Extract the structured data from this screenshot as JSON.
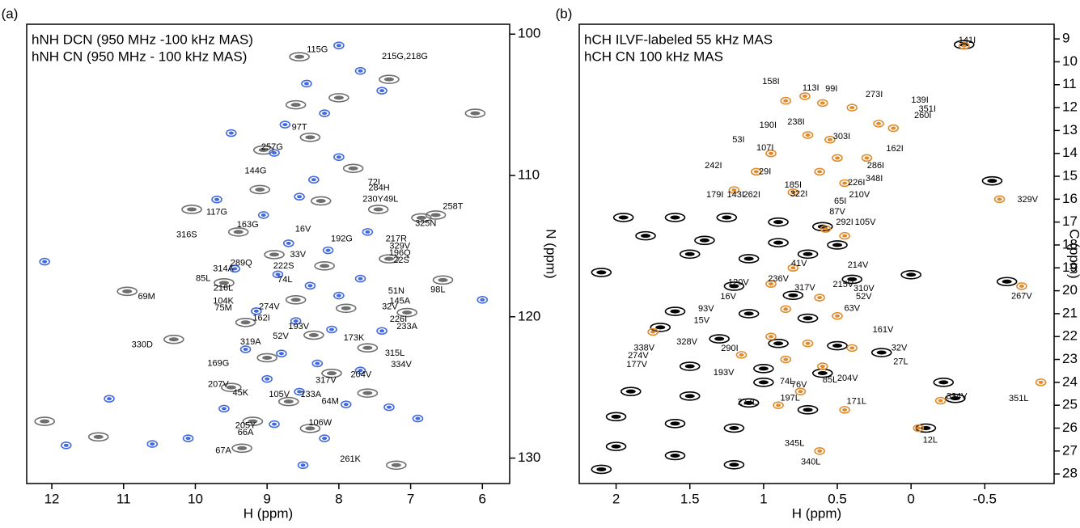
{
  "chart_data": [
    {
      "type": "scatter",
      "panel_label": "(a)",
      "xlabel": "H (ppm)",
      "ylabel": "N (ppm)",
      "xlim": [
        12.35,
        5.62
      ],
      "ylim": [
        99.3,
        131.8
      ],
      "xticks": [
        12,
        11,
        10,
        9,
        8,
        7,
        6
      ],
      "yticks": [
        100,
        110,
        120,
        130
      ],
      "legend": "upper left",
      "series": [
        {
          "name": "hNH DCN (950 MHz -100 kHz MAS)",
          "color": "#4169e1",
          "x": [
            8.0,
            7.7,
            7.4,
            8.45,
            8.2,
            8.75,
            9.5,
            8.9,
            8.0,
            8.35,
            8.55,
            9.7,
            9.05,
            8.7,
            8.15,
            7.6,
            9.45,
            8.85,
            8.4,
            8.0,
            7.7,
            9.15,
            8.6,
            8.1,
            7.4,
            9.3,
            8.8,
            8.3,
            7.7,
            9.0,
            8.55,
            7.9,
            9.6,
            8.9,
            8.2,
            10.6,
            11.8,
            12.1,
            11.2,
            6.0,
            6.9,
            7.3,
            10.1,
            8.5
          ],
          "y": [
            100.8,
            102.6,
            104.0,
            103.5,
            105.6,
            106.4,
            107.0,
            108.4,
            108.7,
            110.3,
            111.5,
            111.7,
            112.8,
            114.8,
            115.3,
            114.0,
            116.6,
            117.0,
            117.8,
            118.5,
            117.3,
            119.6,
            120.3,
            120.9,
            121.0,
            122.3,
            122.6,
            123.3,
            123.8,
            124.4,
            125.3,
            126.2,
            126.5,
            127.6,
            128.6,
            129.0,
            129.1,
            116.1,
            125.8,
            118.8,
            127.2,
            126.4,
            128.6,
            130.5
          ]
        },
        {
          "name": "hNH CN (950 MHz - 100 kHz MAS)",
          "color": "#6e6e6e",
          "x": [
            8.55,
            7.3,
            8.0,
            8.6,
            8.4,
            9.05,
            7.8,
            8.25,
            9.1,
            7.45,
            6.65,
            10.05,
            9.4,
            8.9,
            8.2,
            7.3,
            9.6,
            10.95,
            8.6,
            7.9,
            9.3,
            8.35,
            7.6,
            10.3,
            9.0,
            8.1,
            9.5,
            8.7,
            7.6,
            9.2,
            8.4,
            9.35,
            7.2,
            11.35,
            6.1,
            6.85,
            12.1,
            7.05,
            6.55
          ],
          "y": [
            101.6,
            103.2,
            104.5,
            105.0,
            107.3,
            108.2,
            109.5,
            111.8,
            111.0,
            112.4,
            112.8,
            112.4,
            114.0,
            115.6,
            116.4,
            115.9,
            117.6,
            118.2,
            118.8,
            119.4,
            120.4,
            121.3,
            122.2,
            121.6,
            122.9,
            124.0,
            125.0,
            126.0,
            125.4,
            127.4,
            127.9,
            129.3,
            130.5,
            128.5,
            105.6,
            113.0,
            127.4,
            119.7,
            117.4
          ]
        }
      ],
      "annotations": [
        {
          "text": "115G",
          "x": 8.3,
          "y": 101.1
        },
        {
          "text": "215G,218G",
          "x": 7.08,
          "y": 101.6
        },
        {
          "text": "97T",
          "x": 8.55,
          "y": 106.6
        },
        {
          "text": "257G",
          "x": 8.93,
          "y": 108.0
        },
        {
          "text": "144G",
          "x": 9.16,
          "y": 109.7
        },
        {
          "text": "72I",
          "x": 7.51,
          "y": 110.5
        },
        {
          "text": "284H",
          "x": 7.44,
          "y": 110.9
        },
        {
          "text": "230Y49L",
          "x": 7.42,
          "y": 111.7
        },
        {
          "text": "258T",
          "x": 6.41,
          "y": 112.2
        },
        {
          "text": "117G",
          "x": 9.7,
          "y": 112.6
        },
        {
          "text": "163G",
          "x": 9.27,
          "y": 113.5
        },
        {
          "text": "325N",
          "x": 6.79,
          "y": 113.4
        },
        {
          "text": "16V",
          "x": 8.5,
          "y": 113.8
        },
        {
          "text": "316S",
          "x": 10.12,
          "y": 114.2
        },
        {
          "text": "192G",
          "x": 7.96,
          "y": 114.5
        },
        {
          "text": "217R",
          "x": 7.2,
          "y": 114.5
        },
        {
          "text": "329V",
          "x": 7.15,
          "y": 115.0
        },
        {
          "text": "289Q",
          "x": 9.36,
          "y": 116.2
        },
        {
          "text": "196Q",
          "x": 7.15,
          "y": 115.5
        },
        {
          "text": "33V",
          "x": 8.57,
          "y": 115.6
        },
        {
          "text": "314A",
          "x": 9.61,
          "y": 116.6
        },
        {
          "text": "22S",
          "x": 7.13,
          "y": 116.0
        },
        {
          "text": "222S",
          "x": 8.77,
          "y": 116.4
        },
        {
          "text": "85L",
          "x": 9.89,
          "y": 117.3
        },
        {
          "text": "74L",
          "x": 8.75,
          "y": 117.4
        },
        {
          "text": "216L",
          "x": 9.61,
          "y": 118.0
        },
        {
          "text": "51N",
          "x": 7.2,
          "y": 118.2
        },
        {
          "text": "98L",
          "x": 6.62,
          "y": 118.1
        },
        {
          "text": "69M",
          "x": 10.68,
          "y": 118.6
        },
        {
          "text": "104K",
          "x": 9.61,
          "y": 118.9
        },
        {
          "text": "145A",
          "x": 7.15,
          "y": 118.9
        },
        {
          "text": "75M",
          "x": 9.61,
          "y": 119.4
        },
        {
          "text": "32V",
          "x": 7.29,
          "y": 119.3
        },
        {
          "text": "274V",
          "x": 8.97,
          "y": 119.3
        },
        {
          "text": "162I",
          "x": 9.08,
          "y": 120.1
        },
        {
          "text": "226I",
          "x": 7.17,
          "y": 120.2
        },
        {
          "text": "193V",
          "x": 8.56,
          "y": 120.7
        },
        {
          "text": "233A",
          "x": 7.05,
          "y": 120.7
        },
        {
          "text": "52V",
          "x": 8.81,
          "y": 121.4
        },
        {
          "text": "173K",
          "x": 7.79,
          "y": 121.5
        },
        {
          "text": "319A",
          "x": 9.23,
          "y": 121.8
        },
        {
          "text": "315L",
          "x": 7.22,
          "y": 122.6
        },
        {
          "text": "330D",
          "x": 10.74,
          "y": 122.0
        },
        {
          "text": "334V",
          "x": 7.13,
          "y": 123.4
        },
        {
          "text": "169G",
          "x": 9.68,
          "y": 123.3
        },
        {
          "text": "204V",
          "x": 7.69,
          "y": 124.1
        },
        {
          "text": "317V",
          "x": 8.18,
          "y": 124.5
        },
        {
          "text": "207V",
          "x": 9.68,
          "y": 124.8
        },
        {
          "text": "45K",
          "x": 9.37,
          "y": 125.4
        },
        {
          "text": "105V",
          "x": 8.83,
          "y": 125.5
        },
        {
          "text": "133A",
          "x": 8.39,
          "y": 125.5
        },
        {
          "text": "64M",
          "x": 8.12,
          "y": 126.0
        },
        {
          "text": "205Y",
          "x": 9.3,
          "y": 127.7
        },
        {
          "text": "106W",
          "x": 8.26,
          "y": 127.5
        },
        {
          "text": "66A",
          "x": 9.3,
          "y": 128.2
        },
        {
          "text": "67A",
          "x": 9.61,
          "y": 129.5
        },
        {
          "text": "261K",
          "x": 7.84,
          "y": 130.1
        }
      ]
    },
    {
      "type": "scatter",
      "panel_label": "(b)",
      "xlabel": "H (ppm)",
      "ylabel": "C (ppm)",
      "xlim": [
        2.25,
        -0.97
      ],
      "ylim": [
        8.36,
        28.42
      ],
      "xticks": [
        2,
        1.5,
        1,
        0.5,
        0,
        -0.5
      ],
      "yticks": [
        9,
        10,
        11,
        12,
        13,
        14,
        15,
        16,
        17,
        18,
        19,
        20,
        21,
        22,
        23,
        24,
        25,
        26,
        27,
        28
      ],
      "legend": "upper left",
      "series": [
        {
          "name": "hCH ILVF-labeled 55 kHz MAS",
          "color": "#e08a2a",
          "x": [
            0.72,
            0.85,
            0.6,
            0.4,
            0.22,
            0.12,
            0.7,
            0.55,
            0.95,
            0.5,
            0.3,
            1.05,
            0.62,
            0.45,
            1.2,
            0.8,
            -0.6,
            -0.75,
            0.58,
            0.45,
            0.8,
            0.95,
            0.62,
            0.85,
            0.5,
            0.95,
            0.7,
            0.4,
            1.15,
            0.85,
            0.6,
            0.75,
            0.9,
            0.45,
            -0.2,
            -0.88,
            -0.05,
            0.62,
            -0.36,
            1.75
          ],
          "y": [
            11.5,
            11.7,
            11.8,
            12.0,
            12.7,
            12.9,
            13.2,
            13.4,
            14.0,
            14.2,
            14.2,
            14.8,
            14.8,
            15.3,
            15.6,
            15.7,
            16.0,
            19.8,
            17.3,
            17.6,
            19.0,
            19.7,
            20.3,
            20.8,
            21.1,
            22.0,
            22.3,
            22.5,
            22.8,
            23.0,
            23.3,
            24.4,
            25.0,
            25.2,
            24.8,
            24.0,
            26.0,
            27.0,
            9.3,
            21.8
          ]
        },
        {
          "name": "hCH CN 100 kHz MAS",
          "color": "#000000",
          "x": [
            1.95,
            1.6,
            1.25,
            0.9,
            0.6,
            1.8,
            1.4,
            0.9,
            0.5,
            1.5,
            1.1,
            0.7,
            2.1,
            1.2,
            0.8,
            0.4,
            1.6,
            1.1,
            0.7,
            1.7,
            1.3,
            0.9,
            0.5,
            0.2,
            1.5,
            1.0,
            0.6,
            1.9,
            1.5,
            1.1,
            0.7,
            2.0,
            1.6,
            1.2,
            2.0,
            1.6,
            1.2,
            2.1,
            -0.1,
            -0.3,
            -0.22,
            -0.65,
            -0.55,
            0.0,
            -0.36,
            1.0
          ],
          "y": [
            16.8,
            16.8,
            16.8,
            17.0,
            17.2,
            17.6,
            17.8,
            17.9,
            18.0,
            18.4,
            18.6,
            18.4,
            19.2,
            19.8,
            20.2,
            19.5,
            20.9,
            21.0,
            21.2,
            21.6,
            22.1,
            22.3,
            22.4,
            22.7,
            23.3,
            23.4,
            23.6,
            24.4,
            24.6,
            24.9,
            25.2,
            25.5,
            25.8,
            26.0,
            26.8,
            27.2,
            27.6,
            27.8,
            26.0,
            24.7,
            24.0,
            19.6,
            15.2,
            19.3,
            9.25,
            24.0
          ]
        }
      ],
      "annotations": [
        {
          "text": "141I",
          "x": -0.38,
          "y": 9.07
        },
        {
          "text": "158I",
          "x": 0.95,
          "y": 10.87
        },
        {
          "text": "113I",
          "x": 0.68,
          "y": 11.16
        },
        {
          "text": "99I",
          "x": 0.54,
          "y": 11.19
        },
        {
          "text": "273I",
          "x": 0.25,
          "y": 11.44
        },
        {
          "text": "139I",
          "x": -0.06,
          "y": 11.69
        },
        {
          "text": "351I",
          "x": -0.11,
          "y": 12.07
        },
        {
          "text": "260I",
          "x": -0.08,
          "y": 12.36
        },
        {
          "text": "238I",
          "x": 0.78,
          "y": 12.64
        },
        {
          "text": "190I",
          "x": 0.97,
          "y": 12.78
        },
        {
          "text": "303I",
          "x": 0.47,
          "y": 13.28
        },
        {
          "text": "53I",
          "x": 1.17,
          "y": 13.42
        },
        {
          "text": "107I",
          "x": 0.99,
          "y": 13.77
        },
        {
          "text": "162I",
          "x": 0.11,
          "y": 13.81
        },
        {
          "text": "286I",
          "x": 0.24,
          "y": 14.55
        },
        {
          "text": "242I",
          "x": 1.34,
          "y": 14.55
        },
        {
          "text": "29I",
          "x": 0.99,
          "y": 14.8
        },
        {
          "text": "348I",
          "x": 0.25,
          "y": 15.11
        },
        {
          "text": "185I",
          "x": 0.8,
          "y": 15.4
        },
        {
          "text": "226I",
          "x": 0.37,
          "y": 15.29
        },
        {
          "text": "262I",
          "x": 1.08,
          "y": 15.82
        },
        {
          "text": "179I",
          "x": 1.33,
          "y": 15.82
        },
        {
          "text": "143I",
          "x": 1.19,
          "y": 15.82
        },
        {
          "text": "322I",
          "x": 0.76,
          "y": 15.78
        },
        {
          "text": "210V",
          "x": 0.35,
          "y": 15.82
        },
        {
          "text": "65I",
          "x": 0.48,
          "y": 16.1
        },
        {
          "text": "329V",
          "x": -0.79,
          "y": 16.03
        },
        {
          "text": "87V",
          "x": 0.5,
          "y": 16.56
        },
        {
          "text": "292I",
          "x": 0.45,
          "y": 17.02
        },
        {
          "text": "105V",
          "x": 0.31,
          "y": 17.02
        },
        {
          "text": "41V",
          "x": 0.76,
          "y": 18.82
        },
        {
          "text": "214V",
          "x": 0.36,
          "y": 18.89
        },
        {
          "text": "236V",
          "x": 0.9,
          "y": 19.49
        },
        {
          "text": "120V",
          "x": 1.17,
          "y": 19.64
        },
        {
          "text": "267V",
          "x": -0.75,
          "y": 20.24
        },
        {
          "text": "317V",
          "x": 0.72,
          "y": 19.88
        },
        {
          "text": "215V",
          "x": 0.46,
          "y": 19.74
        },
        {
          "text": "310V",
          "x": 0.32,
          "y": 19.92
        },
        {
          "text": "52V",
          "x": 0.32,
          "y": 20.27
        },
        {
          "text": "16V",
          "x": 1.24,
          "y": 20.27
        },
        {
          "text": "63V",
          "x": 0.4,
          "y": 20.77
        },
        {
          "text": "93V",
          "x": 1.39,
          "y": 20.8
        },
        {
          "text": "15V",
          "x": 1.42,
          "y": 21.3
        },
        {
          "text": "161V",
          "x": 0.19,
          "y": 21.72
        },
        {
          "text": "328V",
          "x": 1.52,
          "y": 22.25
        },
        {
          "text": "338V",
          "x": 1.81,
          "y": 22.5
        },
        {
          "text": "32V",
          "x": 0.08,
          "y": 22.5
        },
        {
          "text": "290I",
          "x": 1.23,
          "y": 22.53
        },
        {
          "text": "274V",
          "x": 1.85,
          "y": 22.85
        },
        {
          "text": "27L",
          "x": 0.07,
          "y": 23.1
        },
        {
          "text": "177V",
          "x": 1.86,
          "y": 23.24
        },
        {
          "text": "193V",
          "x": 1.27,
          "y": 23.59
        },
        {
          "text": "74L",
          "x": 0.84,
          "y": 23.98
        },
        {
          "text": "76V",
          "x": 0.76,
          "y": 24.12
        },
        {
          "text": "85L",
          "x": 0.55,
          "y": 23.91
        },
        {
          "text": "204V",
          "x": 0.43,
          "y": 23.84
        },
        {
          "text": "351L",
          "x": -0.73,
          "y": 24.72
        },
        {
          "text": "334V",
          "x": -0.31,
          "y": 24.62
        },
        {
          "text": "197L",
          "x": 0.82,
          "y": 24.69
        },
        {
          "text": "277L",
          "x": 1.11,
          "y": 24.87
        },
        {
          "text": "171L",
          "x": 0.37,
          "y": 24.83
        },
        {
          "text": "12L",
          "x": -0.13,
          "y": 26.53
        },
        {
          "text": "345L",
          "x": 0.79,
          "y": 26.67
        },
        {
          "text": "340L",
          "x": 0.68,
          "y": 27.48
        }
      ]
    }
  ]
}
